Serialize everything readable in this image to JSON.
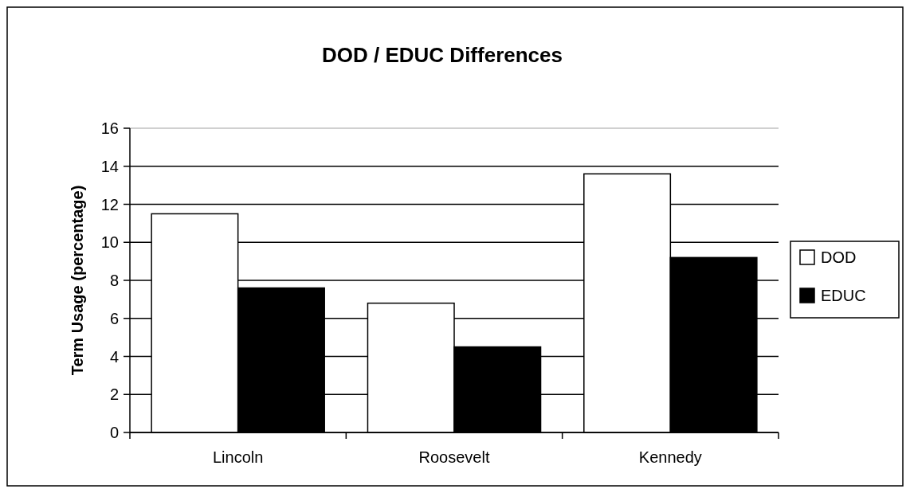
{
  "chart_data": {
    "type": "bar",
    "title": "DOD / EDUC Differences",
    "ylabel": "Term Usage (percentage)",
    "categories": [
      "Lincoln",
      "Roosevelt",
      "Kennedy"
    ],
    "series": [
      {
        "name": "DOD",
        "color": "#ffffff",
        "values": [
          11.5,
          6.8,
          13.6
        ]
      },
      {
        "name": "EDUC",
        "color": "#000000",
        "values": [
          7.6,
          4.5,
          9.2
        ]
      }
    ],
    "ylim": [
      0,
      16
    ],
    "yticks": [
      0,
      2,
      4,
      6,
      8,
      10,
      12,
      14,
      16
    ],
    "grid": "y",
    "legend": "right"
  }
}
